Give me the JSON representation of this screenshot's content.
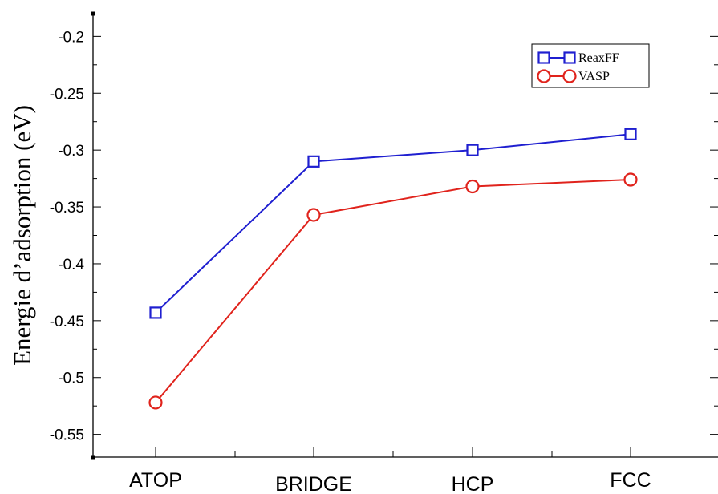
{
  "chart_data": {
    "type": "line",
    "title": "",
    "xlabel": "",
    "ylabel": "Energie d’adsorption (eV)",
    "categories": [
      "ATOP",
      "BRIDGE",
      "HCP",
      "FCC"
    ],
    "ylim": [
      -0.57,
      -0.18
    ],
    "yticks": [
      -0.2,
      -0.25,
      -0.3,
      -0.35,
      -0.4,
      -0.45,
      -0.5,
      -0.55
    ],
    "ytick_labels": [
      "-0.2",
      "-0.25",
      "-0.3",
      "-0.35",
      "-0.4",
      "-0.45",
      "-0.5",
      "-0.55"
    ],
    "grid": false,
    "legend_position": "top-right",
    "series": [
      {
        "name": "ReaxFF",
        "marker": "square",
        "color": "#1f1fd0",
        "values": [
          -0.443,
          -0.31,
          -0.3,
          -0.286
        ]
      },
      {
        "name": "VASP",
        "marker": "circle",
        "color": "#e0231c",
        "values": [
          -0.522,
          -0.357,
          -0.332,
          -0.326
        ]
      }
    ]
  }
}
